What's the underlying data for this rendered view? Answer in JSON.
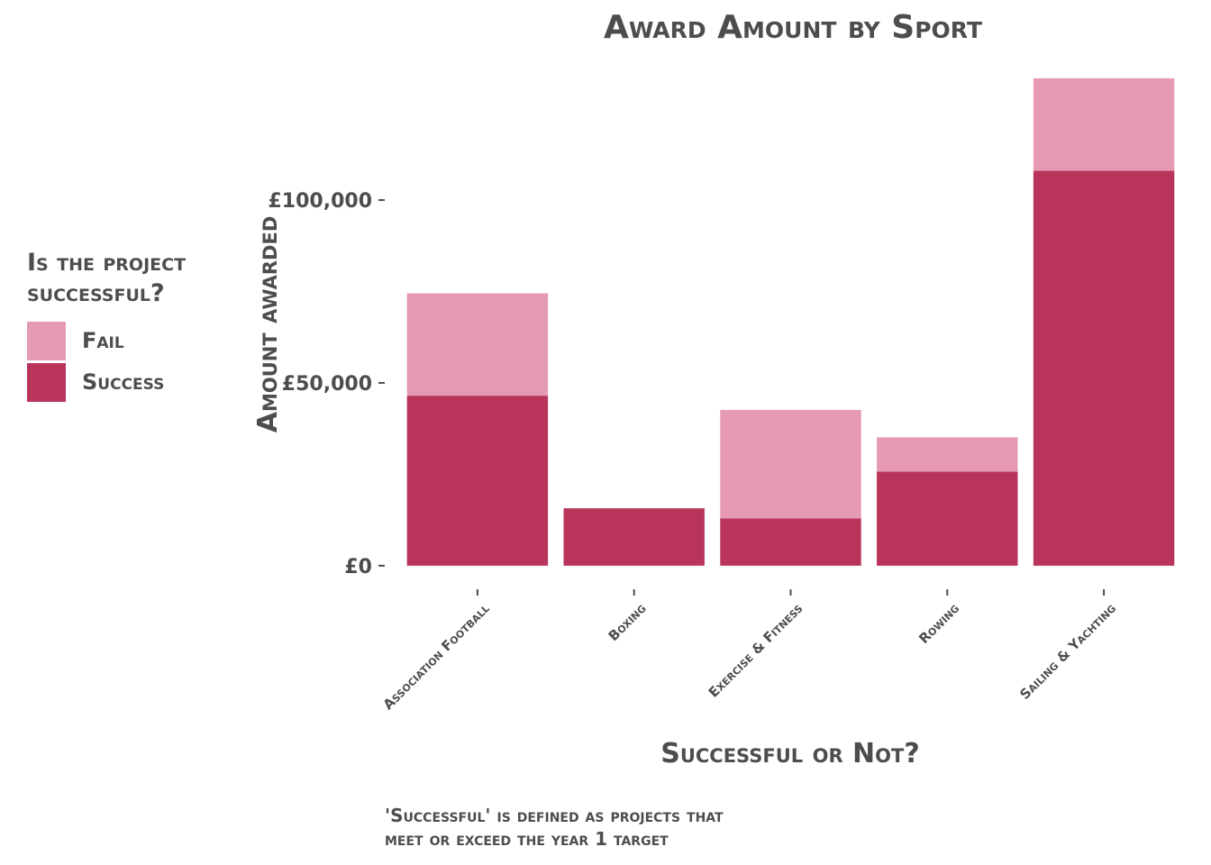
{
  "title": "Award Amount by Sport",
  "legend": {
    "title_line1": "Is the project",
    "title_line2": "successful?",
    "items": [
      {
        "label": "Fail",
        "color": "#e599b4"
      },
      {
        "label": "Success",
        "color": "#b8345b"
      }
    ]
  },
  "caption": {
    "line1": "'Successful' is defined as projects that",
    "line2": "meet or exceed the year 1 target"
  },
  "chart_data": {
    "type": "bar",
    "stacked": true,
    "title": "Award Amount by Sport",
    "xlabel": "Successful or Not?",
    "ylabel": "Amount awarded",
    "categories": [
      "Association Football",
      "Boxing",
      "Exercise & Fitness",
      "Rowing",
      "Sailing & Yachting"
    ],
    "series": [
      {
        "name": "Success",
        "color": "#b8345b",
        "values": [
          46500,
          15700,
          12900,
          25700,
          108000
        ]
      },
      {
        "name": "Fail",
        "color": "#e599b4",
        "values": [
          28000,
          0,
          29700,
          9400,
          25300
        ]
      }
    ],
    "yticks": [
      0,
      50000,
      100000
    ],
    "ytick_labels": [
      "£0",
      "£50,000",
      "£100,000"
    ],
    "ylim": [
      -3000,
      135000
    ],
    "grid": false,
    "legend_position": "left"
  }
}
